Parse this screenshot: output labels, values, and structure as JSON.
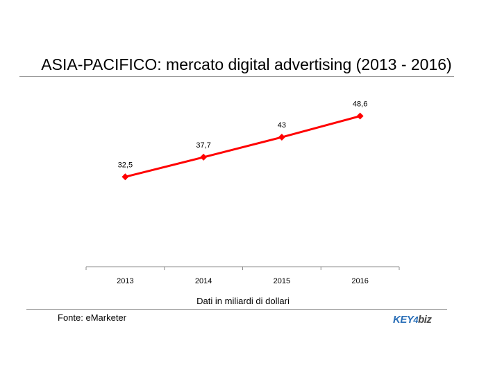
{
  "title": "ASIA-PACIFICO: mercato digital advertising (2013 - 2016)",
  "note": "Dati in miliardi di dollari",
  "source": "Fonte: eMarketer",
  "logo": {
    "part1": "KEY",
    "part2": "4",
    "part3": "biz"
  },
  "chart_data": {
    "type": "line",
    "title": "ASIA-PACIFICO: mercato digital advertising (2013 - 2016)",
    "categories": [
      "2013",
      "2014",
      "2015",
      "2016"
    ],
    "series": [
      {
        "values": [
          32.5,
          37.7,
          43,
          48.6
        ],
        "labels": [
          "32,5",
          "37,7",
          "43",
          "48,6"
        ],
        "color": "#ff0000"
      }
    ],
    "xlabel": "Dati in miliardi di dollari",
    "ylabel": "",
    "ylim": [
      0,
      55
    ],
    "grid": false,
    "legend": "none"
  }
}
